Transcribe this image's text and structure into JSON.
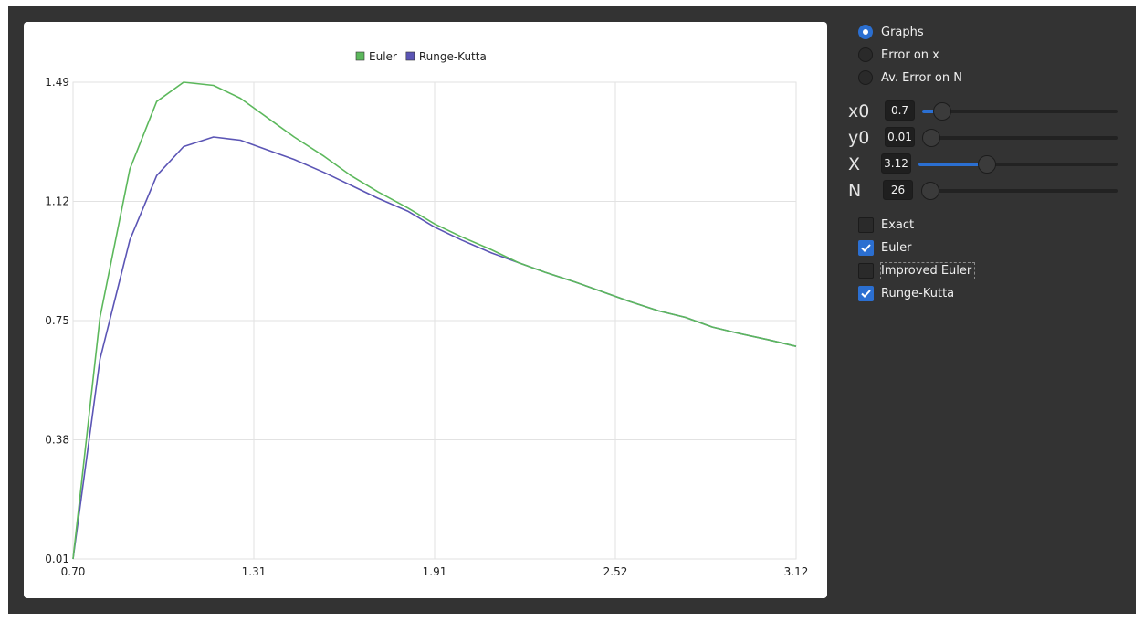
{
  "view_mode": {
    "options": [
      {
        "label": "Graphs",
        "selected": true
      },
      {
        "label": "Error on x",
        "selected": false
      },
      {
        "label": "Av. Error on N",
        "selected": false
      }
    ]
  },
  "params": [
    {
      "label": "x0",
      "value": "0.7",
      "slider_fraction": 0.06
    },
    {
      "label": "y0",
      "value": "0.01",
      "slider_fraction": 0.0
    },
    {
      "label": "X",
      "value": "3.12",
      "slider_fraction": 0.33
    },
    {
      "label": "N",
      "value": "26",
      "slider_fraction": 0.0
    }
  ],
  "methods": [
    {
      "label": "Exact",
      "checked": false
    },
    {
      "label": "Euler",
      "checked": true
    },
    {
      "label": "Improved Euler",
      "checked": false,
      "focused": true
    },
    {
      "label": "Runge-Kutta",
      "checked": true
    }
  ],
  "colors": {
    "euler": "#5cb85c",
    "runge_kutta": "#5b55b5",
    "accent": "#2b6fd1"
  },
  "chart_data": {
    "type": "line",
    "legend": [
      "Euler",
      "Runge-Kutta"
    ],
    "legend_placement": "top-center",
    "grid": true,
    "xlim": [
      0.7,
      3.12
    ],
    "ylim": [
      0.01,
      1.49
    ],
    "x_ticks": [
      "0.70",
      "1.31",
      "1.91",
      "2.52",
      "3.12"
    ],
    "y_ticks": [
      "0.01",
      "0.38",
      "0.75",
      "1.12",
      "1.49"
    ],
    "series": [
      {
        "name": "Euler",
        "color": "#5cb85c",
        "x": [
          0.7,
          0.79,
          0.89,
          0.98,
          1.07,
          1.17,
          1.26,
          1.35,
          1.44,
          1.54,
          1.63,
          1.72,
          1.82,
          1.91,
          2.0,
          2.1,
          2.19,
          2.28,
          2.38,
          2.47,
          2.56,
          2.66,
          2.75,
          2.84,
          2.93,
          3.03,
          3.12
        ],
        "y": [
          0.01,
          0.76,
          1.22,
          1.43,
          1.49,
          1.48,
          1.44,
          1.38,
          1.32,
          1.26,
          1.2,
          1.15,
          1.1,
          1.05,
          1.01,
          0.97,
          0.93,
          0.9,
          0.87,
          0.84,
          0.81,
          0.78,
          0.76,
          0.73,
          0.71,
          0.69,
          0.67
        ]
      },
      {
        "name": "Runge-Kutta",
        "color": "#5b55b5",
        "x": [
          0.7,
          0.79,
          0.89,
          0.98,
          1.07,
          1.17,
          1.26,
          1.35,
          1.44,
          1.54,
          1.63,
          1.72,
          1.82,
          1.91,
          2.0,
          2.1,
          2.19,
          2.28,
          2.38,
          2.47,
          2.56,
          2.66,
          2.75,
          2.84,
          2.93,
          3.03,
          3.12
        ],
        "y": [
          0.01,
          0.63,
          1.0,
          1.2,
          1.29,
          1.32,
          1.31,
          1.28,
          1.25,
          1.21,
          1.17,
          1.13,
          1.09,
          1.04,
          1.0,
          0.96,
          0.93,
          0.9,
          0.87,
          0.84,
          0.81,
          0.78,
          0.76,
          0.73,
          0.71,
          0.69,
          0.67
        ]
      }
    ]
  }
}
